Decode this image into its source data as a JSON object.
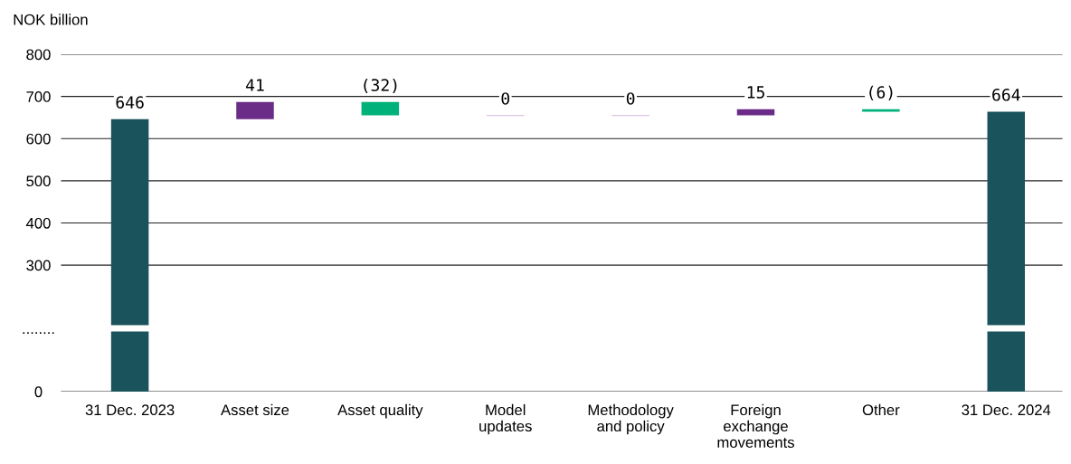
{
  "chart_data": {
    "type": "bar",
    "ylabel": "NOK billion",
    "categories": [
      "31 Dec. 2023",
      "Asset size",
      "Asset quality",
      "Model\nupdates",
      "Methodology\nand policy",
      "Foreign\nexchange\nmovements",
      "Other",
      "31 Dec. 2024"
    ],
    "values": [
      646,
      41,
      -32,
      0,
      0,
      15,
      -6,
      664
    ],
    "base": [
      0,
      646,
      687,
      655,
      655,
      655,
      670,
      0
    ],
    "colors": [
      "#1a535c",
      "#6b2c87",
      "#00b27a",
      "#d9c6e3",
      "#d9c6e3",
      "#6b2c87",
      "#00b27a",
      "#1a535c"
    ],
    "value_labels": [
      "646",
      "41",
      "(32)",
      "0",
      "0",
      "15",
      "(6)",
      "664"
    ],
    "ylim": [
      0,
      800
    ],
    "yticks": [
      0,
      {
        "value": 150,
        "label": "........"
      },
      300,
      400,
      500,
      600,
      700,
      800
    ],
    "grid": "y"
  }
}
